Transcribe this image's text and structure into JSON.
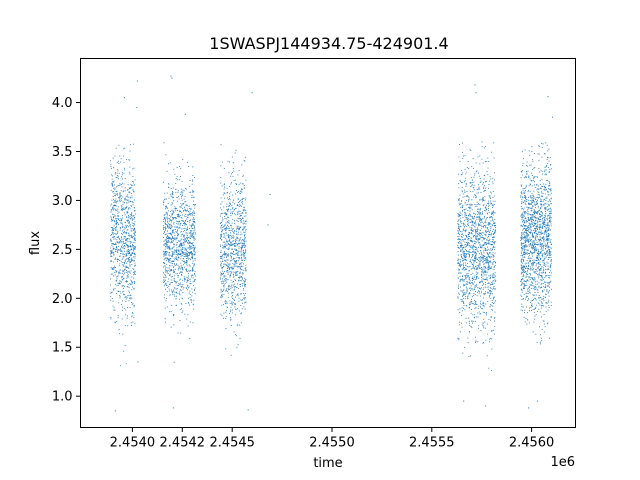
{
  "chart_data": {
    "type": "scatter",
    "title": "1SWASPJ144934.75-424901.4",
    "xlabel": "time",
    "ylabel": "flux",
    "x_offset_label": "1e6",
    "xlim": [
      2453730,
      2456210
    ],
    "ylim": [
      0.68,
      4.45
    ],
    "x_ticks": [
      {
        "value": 2453990,
        "label": "2.4540"
      },
      {
        "value": 2454240,
        "label": "2.4542"
      },
      {
        "value": 2454490,
        "label": "2.4545"
      },
      {
        "value": 2454990,
        "label": "2.4550"
      },
      {
        "value": 2455490,
        "label": "2.4555"
      },
      {
        "value": 2455990,
        "label": "2.4560"
      }
    ],
    "y_ticks": [
      {
        "value": 1.0,
        "label": "1.0"
      },
      {
        "value": 1.5,
        "label": "1.5"
      },
      {
        "value": 2.0,
        "label": "2.0"
      },
      {
        "value": 2.5,
        "label": "2.5"
      },
      {
        "value": 3.0,
        "label": "3.0"
      },
      {
        "value": 3.5,
        "label": "3.5"
      },
      {
        "value": 4.0,
        "label": "4.0"
      }
    ],
    "grid": false,
    "marker_color": "#1f77b4",
    "clusters": [
      {
        "x_start": 2453880,
        "x_end": 2454005,
        "center": 2.6,
        "spread": 0.38,
        "count": 900
      },
      {
        "x_start": 2454145,
        "x_end": 2454305,
        "center": 2.55,
        "spread": 0.32,
        "count": 1100
      },
      {
        "x_start": 2454430,
        "x_end": 2454560,
        "center": 2.5,
        "spread": 0.36,
        "count": 900
      },
      {
        "x_start": 2455620,
        "x_end": 2455810,
        "center": 2.5,
        "spread": 0.4,
        "count": 1500
      },
      {
        "x_start": 2455935,
        "x_end": 2456090,
        "center": 2.6,
        "spread": 0.38,
        "count": 1500
      }
    ],
    "outliers": [
      {
        "x": 2454015,
        "y": 4.22
      },
      {
        "x": 2453950,
        "y": 4.05
      },
      {
        "x": 2453905,
        "y": 0.85
      },
      {
        "x": 2454012,
        "y": 3.95
      },
      {
        "x": 2454183,
        "y": 4.27
      },
      {
        "x": 2454188,
        "y": 4.25
      },
      {
        "x": 2454195,
        "y": 0.88
      },
      {
        "x": 2454255,
        "y": 3.88
      },
      {
        "x": 2454590,
        "y": 4.1
      },
      {
        "x": 2454570,
        "y": 0.86
      },
      {
        "x": 2454680,
        "y": 3.06
      },
      {
        "x": 2454670,
        "y": 2.75
      },
      {
        "x": 2455706,
        "y": 4.18
      },
      {
        "x": 2455712,
        "y": 4.1
      },
      {
        "x": 2455760,
        "y": 0.9
      },
      {
        "x": 2456072,
        "y": 4.06
      },
      {
        "x": 2456095,
        "y": 3.85
      },
      {
        "x": 2455975,
        "y": 0.88
      },
      {
        "x": 2454018,
        "y": 1.35
      },
      {
        "x": 2455650,
        "y": 0.95
      },
      {
        "x": 2456020,
        "y": 0.95
      }
    ]
  }
}
